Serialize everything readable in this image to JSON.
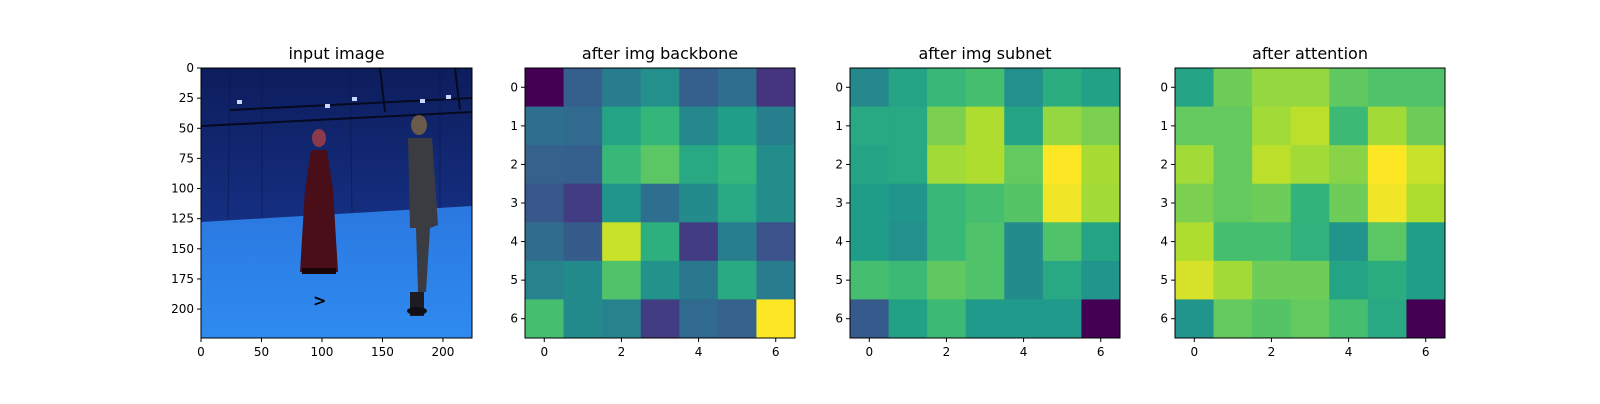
{
  "chart_data": [
    {
      "type": "image",
      "title": "input image",
      "xticks": [
        0,
        50,
        100,
        150,
        200
      ],
      "yticks": [
        0,
        25,
        50,
        75,
        100,
        125,
        150,
        175,
        200
      ],
      "xlim": [
        0,
        224
      ],
      "ylim": [
        224,
        0
      ],
      "description": "Blue studio backdrop with a woman in a dark red dress (left) and a man in a dark jacket (right) facing each other"
    },
    {
      "type": "heatmap",
      "title": "after img backbone",
      "xticks": [
        0,
        2,
        4,
        6
      ],
      "yticks": [
        0,
        1,
        2,
        3,
        4,
        5,
        6
      ],
      "colormap": "viridis",
      "values": [
        [
          0.0,
          0.3,
          0.42,
          0.5,
          0.3,
          0.36,
          0.15
        ],
        [
          0.36,
          0.34,
          0.58,
          0.66,
          0.47,
          0.56,
          0.43
        ],
        [
          0.31,
          0.3,
          0.67,
          0.74,
          0.6,
          0.66,
          0.49
        ],
        [
          0.27,
          0.18,
          0.52,
          0.36,
          0.48,
          0.6,
          0.49
        ],
        [
          0.35,
          0.29,
          0.92,
          0.63,
          0.18,
          0.43,
          0.25
        ],
        [
          0.45,
          0.48,
          0.72,
          0.51,
          0.4,
          0.61,
          0.42
        ],
        [
          0.7,
          0.48,
          0.45,
          0.18,
          0.34,
          0.31,
          1.0
        ]
      ]
    },
    {
      "type": "heatmap",
      "title": "after img subnet",
      "xticks": [
        0,
        2,
        4,
        6
      ],
      "yticks": [
        0,
        1,
        2,
        3,
        4,
        5,
        6
      ],
      "colormap": "viridis",
      "values": [
        [
          0.47,
          0.58,
          0.67,
          0.7,
          0.5,
          0.62,
          0.57
        ],
        [
          0.6,
          0.6,
          0.8,
          0.88,
          0.58,
          0.84,
          0.8
        ],
        [
          0.58,
          0.6,
          0.86,
          0.88,
          0.76,
          1.0,
          0.87
        ],
        [
          0.55,
          0.52,
          0.67,
          0.7,
          0.73,
          0.98,
          0.86
        ],
        [
          0.55,
          0.5,
          0.67,
          0.72,
          0.48,
          0.72,
          0.58
        ],
        [
          0.7,
          0.68,
          0.75,
          0.72,
          0.48,
          0.6,
          0.52
        ],
        [
          0.28,
          0.57,
          0.68,
          0.54,
          0.54,
          0.54,
          0.0
        ]
      ]
    },
    {
      "type": "heatmap",
      "title": "after attention",
      "xticks": [
        0,
        2,
        4,
        6
      ],
      "yticks": [
        0,
        1,
        2,
        3,
        4,
        5,
        6
      ],
      "colormap": "viridis",
      "values": [
        [
          0.58,
          0.78,
          0.84,
          0.84,
          0.75,
          0.72,
          0.72
        ],
        [
          0.76,
          0.76,
          0.86,
          0.9,
          0.68,
          0.86,
          0.78
        ],
        [
          0.86,
          0.76,
          0.9,
          0.86,
          0.82,
          1.0,
          0.92
        ],
        [
          0.8,
          0.76,
          0.78,
          0.65,
          0.78,
          0.98,
          0.88
        ],
        [
          0.88,
          0.7,
          0.7,
          0.64,
          0.52,
          0.74,
          0.56
        ],
        [
          0.94,
          0.86,
          0.78,
          0.78,
          0.58,
          0.62,
          0.56
        ],
        [
          0.52,
          0.76,
          0.73,
          0.76,
          0.7,
          0.6,
          0.0
        ]
      ]
    }
  ]
}
